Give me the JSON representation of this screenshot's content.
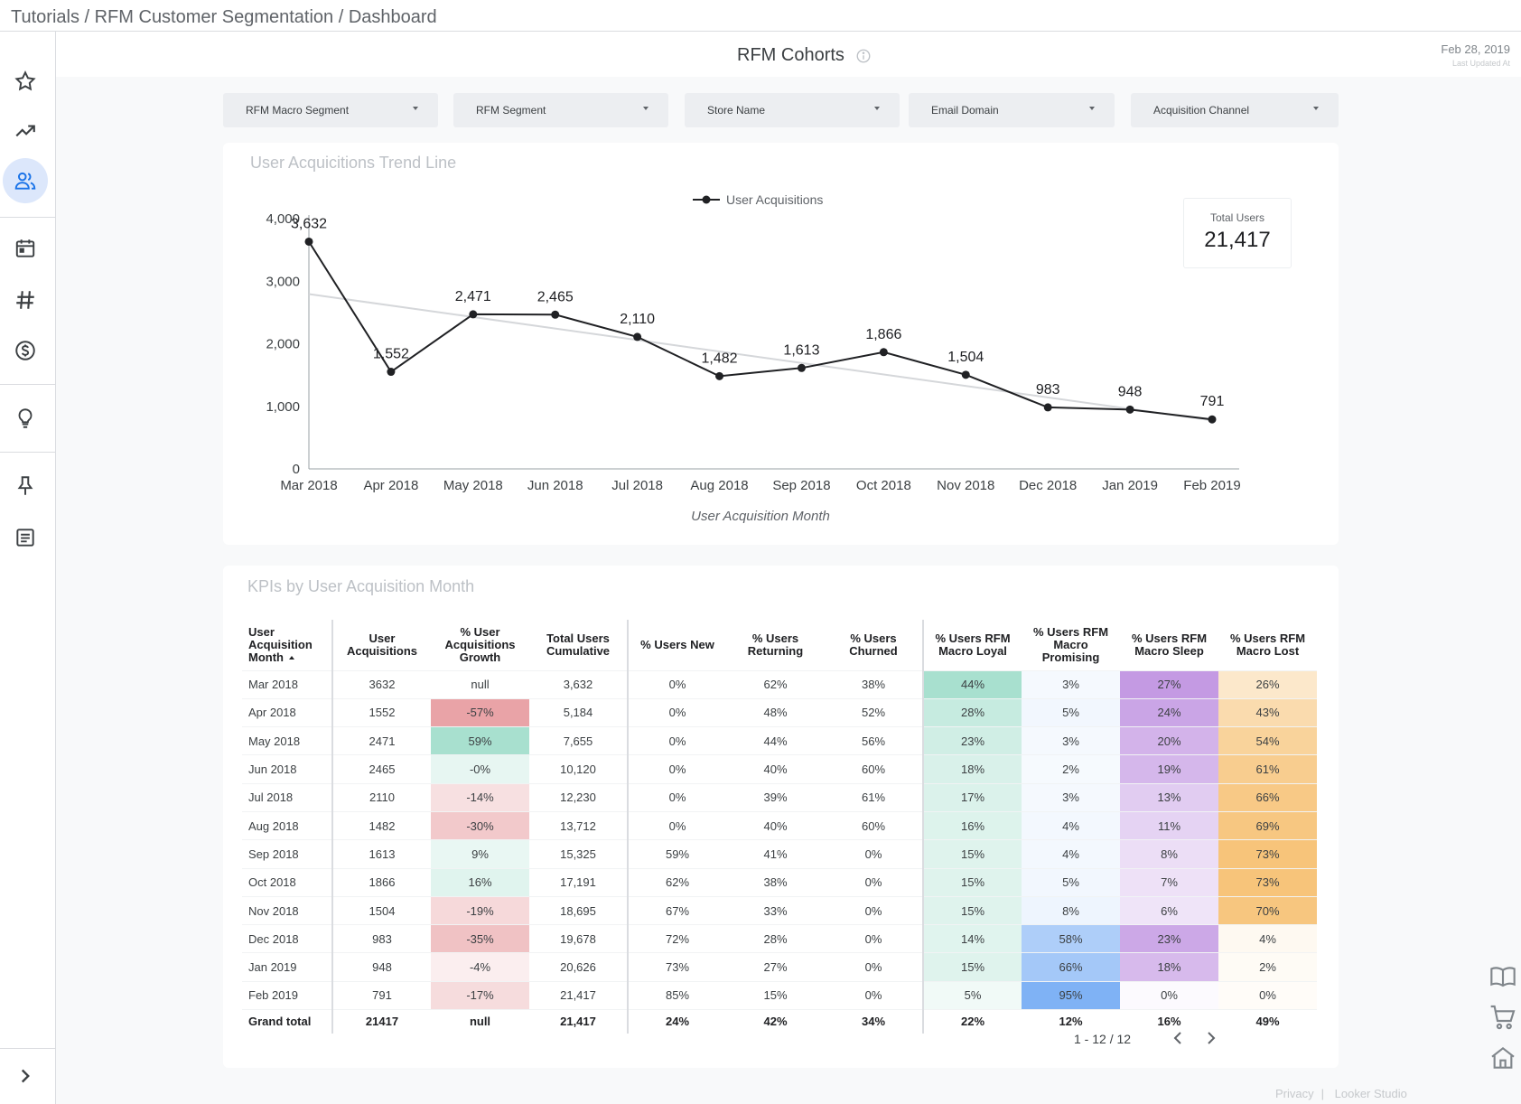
{
  "breadcrumb": "Tutorials / RFM Customer Segmentation / Dashboard",
  "report": {
    "title": "RFM Cohorts",
    "last_updated_date": "Feb 28, 2019",
    "last_updated_label": "Last Updated At"
  },
  "sidebar": {
    "items": [
      {
        "icon": "star-icon"
      },
      {
        "icon": "trending-up-icon"
      },
      {
        "icon": "people-icon",
        "active": true
      },
      {
        "icon": "calendar-icon"
      },
      {
        "icon": "hash-icon"
      },
      {
        "icon": "dollar-icon"
      },
      {
        "icon": "lightbulb-icon"
      },
      {
        "icon": "pin-icon"
      },
      {
        "icon": "document-icon"
      }
    ],
    "expand_icon": "chevron-right-icon"
  },
  "filters": [
    {
      "label": "RFM Macro Segment"
    },
    {
      "label": "RFM Segment"
    },
    {
      "label": "Store Name"
    },
    {
      "label": "Email Domain"
    },
    {
      "label": "Acquisition Channel"
    }
  ],
  "chart_card": {
    "title": "User Acquicitions Trend Line",
    "scorecard_label": "Total Users",
    "scorecard_value": "21,417"
  },
  "chart_data": {
    "type": "line",
    "title": "User Acquicitions Trend Line",
    "xlabel": "User Acquisition Month",
    "ylabel": "",
    "ylim": [
      0,
      4000
    ],
    "yticks": [
      "0",
      "1,000",
      "2,000",
      "3,000",
      "4,000"
    ],
    "legend_position": "top-center",
    "grid": false,
    "trendline": true,
    "categories": [
      "Mar 2018",
      "Apr 2018",
      "May 2018",
      "Jun 2018",
      "Jul 2018",
      "Aug 2018",
      "Sep 2018",
      "Oct 2018",
      "Nov 2018",
      "Dec 2018",
      "Jan 2019",
      "Feb 2019"
    ],
    "series": [
      {
        "name": "User Acquisitions",
        "values": [
          3632,
          1552,
          2471,
          2465,
          2110,
          1482,
          1613,
          1866,
          1504,
          983,
          948,
          791
        ],
        "labels": [
          "3,632",
          "1,552",
          "2,471",
          "2,465",
          "2,110",
          "1,482",
          "1,613",
          "1,866",
          "1,504",
          "983",
          "948",
          "791"
        ]
      }
    ],
    "colors": {
      "line": "#202124",
      "trend": "#d5d7da",
      "axis": "#9aa0a6"
    }
  },
  "table_card": {
    "title": "KPIs by User Acquisition Month",
    "columns": [
      "User Acquisition Month",
      "User Acquisitions",
      "% User Acquisitions Growth",
      "Total Users Cumulative",
      "% Users New",
      "% Users Returning",
      "% Users Churned",
      "% Users RFM Macro Loyal",
      "% Users RFM Macro Promising",
      "% Users RFM Macro Sleep",
      "% Users RFM Macro Lost"
    ],
    "rows": [
      [
        "Mar 2018",
        "3632",
        "null",
        "3,632",
        "0%",
        "62%",
        "38%",
        "44%",
        "3%",
        "27%",
        "26%"
      ],
      [
        "Apr 2018",
        "1552",
        "-57%",
        "5,184",
        "0%",
        "48%",
        "52%",
        "28%",
        "5%",
        "24%",
        "43%"
      ],
      [
        "May 2018",
        "2471",
        "59%",
        "7,655",
        "0%",
        "44%",
        "56%",
        "23%",
        "3%",
        "20%",
        "54%"
      ],
      [
        "Jun 2018",
        "2465",
        "-0%",
        "10,120",
        "0%",
        "40%",
        "60%",
        "18%",
        "2%",
        "19%",
        "61%"
      ],
      [
        "Jul 2018",
        "2110",
        "-14%",
        "12,230",
        "0%",
        "39%",
        "61%",
        "17%",
        "3%",
        "13%",
        "66%"
      ],
      [
        "Aug 2018",
        "1482",
        "-30%",
        "13,712",
        "0%",
        "40%",
        "60%",
        "16%",
        "4%",
        "11%",
        "69%"
      ],
      [
        "Sep 2018",
        "1613",
        "9%",
        "15,325",
        "59%",
        "41%",
        "0%",
        "15%",
        "4%",
        "8%",
        "73%"
      ],
      [
        "Oct 2018",
        "1866",
        "16%",
        "17,191",
        "62%",
        "38%",
        "0%",
        "15%",
        "5%",
        "7%",
        "73%"
      ],
      [
        "Nov 2018",
        "1504",
        "-19%",
        "18,695",
        "67%",
        "33%",
        "0%",
        "15%",
        "8%",
        "6%",
        "70%"
      ],
      [
        "Dec 2018",
        "983",
        "-35%",
        "19,678",
        "72%",
        "28%",
        "0%",
        "14%",
        "58%",
        "23%",
        "4%"
      ],
      [
        "Jan 2019",
        "948",
        "-4%",
        "20,626",
        "73%",
        "27%",
        "0%",
        "15%",
        "66%",
        "18%",
        "2%"
      ],
      [
        "Feb 2019",
        "791",
        "-17%",
        "21,417",
        "85%",
        "15%",
        "0%",
        "5%",
        "95%",
        "0%",
        "0%"
      ]
    ],
    "total": [
      "Grand total",
      "21417",
      "null",
      "21,417",
      "24%",
      "42%",
      "34%",
      "22%",
      "12%",
      "16%",
      "49%"
    ],
    "heat_colors": {
      "growth_pos": "#a8e0cf",
      "growth_neg": "#e8a0a4",
      "loyal": "#a8e0cf",
      "promising": "#7fb2f5",
      "sleep": "#c49ae3",
      "lost": "#f7c47a"
    },
    "pager": "1 - 12 / 12"
  },
  "footer": {
    "privacy": "Privacy",
    "brand": "Looker Studio"
  },
  "right_icons": [
    "book-icon",
    "cart-icon",
    "home-icon"
  ]
}
